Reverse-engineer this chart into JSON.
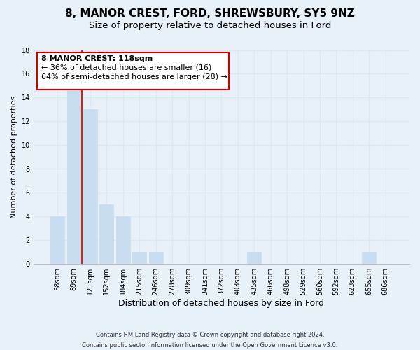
{
  "title": "8, MANOR CREST, FORD, SHREWSBURY, SY5 9NZ",
  "subtitle": "Size of property relative to detached houses in Ford",
  "xlabel": "Distribution of detached houses by size in Ford",
  "ylabel": "Number of detached properties",
  "bar_labels": [
    "58sqm",
    "89sqm",
    "121sqm",
    "152sqm",
    "184sqm",
    "215sqm",
    "246sqm",
    "278sqm",
    "309sqm",
    "341sqm",
    "372sqm",
    "403sqm",
    "435sqm",
    "466sqm",
    "498sqm",
    "529sqm",
    "560sqm",
    "592sqm",
    "623sqm",
    "655sqm",
    "686sqm"
  ],
  "bar_values": [
    4,
    15,
    13,
    5,
    4,
    1,
    1,
    0,
    0,
    0,
    0,
    0,
    1,
    0,
    0,
    0,
    0,
    0,
    0,
    1,
    0
  ],
  "bar_color": "#c8ddf0",
  "bar_edge_color": "#c8ddf0",
  "highlight_bar_index": 2,
  "highlight_line_color": "#cc0000",
  "ylim": [
    0,
    18
  ],
  "yticks": [
    0,
    2,
    4,
    6,
    8,
    10,
    12,
    14,
    16,
    18
  ],
  "annotation_title": "8 MANOR CREST: 118sqm",
  "annotation_line1": "← 36% of detached houses are smaller (16)",
  "annotation_line2": "64% of semi-detached houses are larger (28) →",
  "annotation_box_facecolor": "#ffffff",
  "annotation_box_edgecolor": "#cc0000",
  "footer_line1": "Contains HM Land Registry data © Crown copyright and database right 2024.",
  "footer_line2": "Contains public sector information licensed under the Open Government Licence v3.0.",
  "grid_color": "#dce8f5",
  "background_color": "#e8f0f8",
  "title_fontsize": 11,
  "subtitle_fontsize": 9.5,
  "tick_label_fontsize": 7,
  "ylabel_fontsize": 8,
  "xlabel_fontsize": 9,
  "annotation_fontsize": 8,
  "footer_fontsize": 6
}
